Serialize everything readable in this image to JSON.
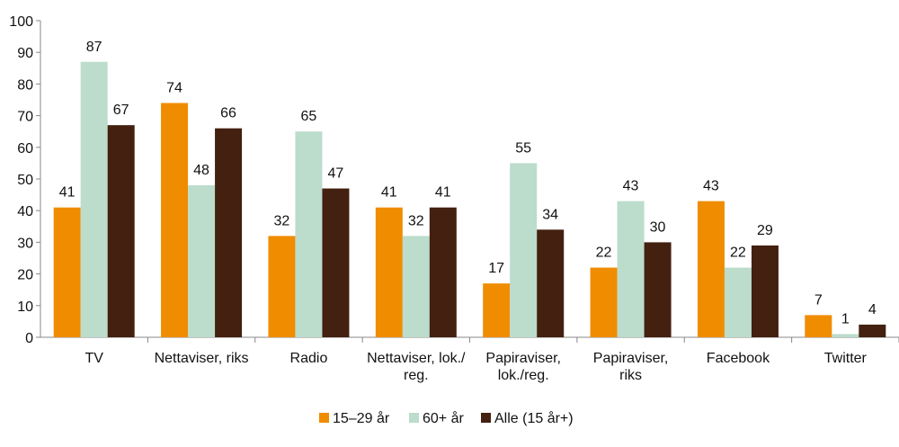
{
  "chart_data": {
    "type": "bar",
    "categories": [
      "TV",
      "Nettaviser, riks",
      "Radio",
      "Nettaviser, lok./\nreg.",
      "Papiraviser,\nlok./reg.",
      "Papiraviser,\nriks",
      "Facebook",
      "Twitter"
    ],
    "series": [
      {
        "name": "15–29 år",
        "color": "#f08c00",
        "values": [
          41,
          74,
          32,
          41,
          17,
          22,
          43,
          7
        ]
      },
      {
        "name": "60+ år",
        "color": "#bcdccc",
        "values": [
          87,
          48,
          65,
          32,
          55,
          43,
          22,
          1
        ]
      },
      {
        "name": "Alle (15 år+)",
        "color": "#43200f",
        "values": [
          67,
          66,
          47,
          41,
          34,
          30,
          29,
          4
        ]
      }
    ],
    "ylim": [
      0,
      100
    ],
    "yticks": [
      0,
      10,
      20,
      30,
      40,
      50,
      60,
      70,
      80,
      90,
      100
    ]
  }
}
